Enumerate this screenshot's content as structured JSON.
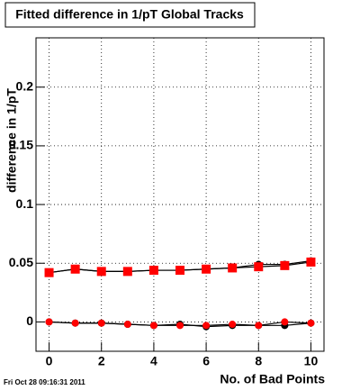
{
  "chart_data": {
    "type": "scatter",
    "title": "Fitted difference in 1/pT  Global Tracks",
    "x_label": "No. of Bad Points",
    "y_label": "difference in 1/pT",
    "footer": "Fri Oct 28 09:16:31 2011",
    "x": [
      0,
      1,
      2,
      3,
      4,
      5,
      6,
      7,
      8,
      9,
      10
    ],
    "series": [
      {
        "color": "#000000",
        "marker": "circle",
        "values": [
          0.042,
          0.045,
          0.043,
          0.043,
          0.044,
          0.044,
          0.045,
          0.046,
          0.049,
          0.049,
          0.052
        ]
      },
      {
        "color": "#ff0000",
        "marker": "square",
        "values": [
          0.042,
          0.045,
          0.043,
          0.043,
          0.044,
          0.044,
          0.045,
          0.046,
          0.047,
          0.048,
          0.051
        ]
      },
      {
        "color": "#000000",
        "marker": "circle",
        "values": [
          0,
          -0.001,
          -0.001,
          -0.002,
          -0.003,
          -0.002,
          -0.004,
          -0.003,
          -0.003,
          -0.003,
          -0.001
        ]
      },
      {
        "color": "#ff0000",
        "marker": "circle",
        "values": [
          0,
          -0.001,
          -0.001,
          -0.002,
          -0.003,
          -0.003,
          -0.003,
          -0.002,
          -0.003,
          0,
          -0.001
        ]
      }
    ],
    "xlim": [
      -0.5,
      10.5
    ],
    "ylim": [
      -0.025,
      0.242
    ],
    "xticks": [
      0,
      2,
      4,
      6,
      8,
      10
    ],
    "yticks": [
      0,
      0.05,
      0.1,
      0.15,
      0.2
    ],
    "grid": true
  }
}
